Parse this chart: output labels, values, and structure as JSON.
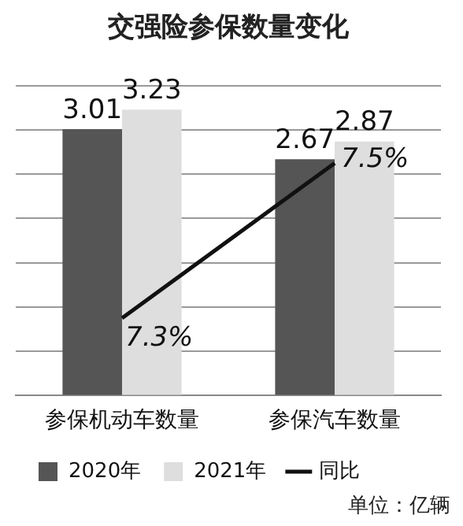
{
  "chart_data": {
    "type": "bar",
    "title": "交强险参保数量变化",
    "categories": [
      "参保机动车数量",
      "参保汽车数量"
    ],
    "series": [
      {
        "name": "2020年",
        "color": "#555555",
        "values": [
          3.01,
          2.67
        ]
      },
      {
        "name": "2021年",
        "color": "#dedede",
        "values": [
          3.23,
          2.87
        ]
      },
      {
        "name": "同比",
        "type": "line",
        "axis": "y2",
        "color": "#111111",
        "values": [
          7.3,
          7.5
        ],
        "value_labels": [
          "7.3%",
          "7.5%"
        ]
      }
    ],
    "tick_labels": "x",
    "grid": "y",
    "legend": "bottom",
    "data_labels": true,
    "marker": "none",
    "annotations": [
      "单位：亿辆"
    ]
  }
}
